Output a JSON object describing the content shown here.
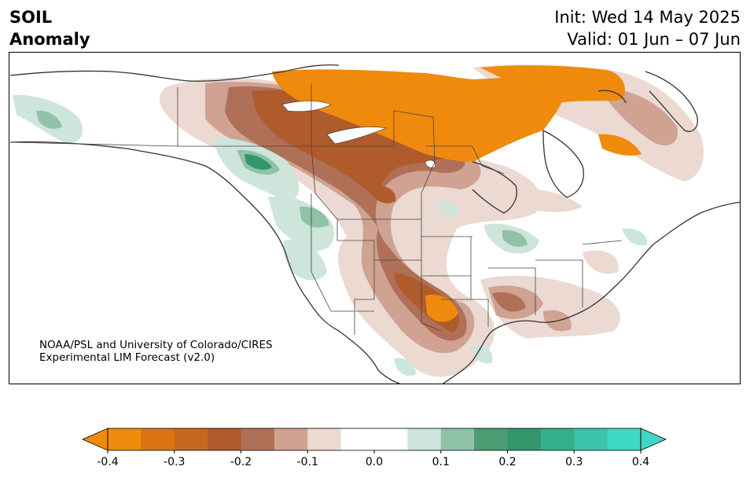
{
  "title": {
    "line1": "SOIL",
    "line2": "Anomaly"
  },
  "dates": {
    "init": "Init: Wed 14 May 2025",
    "valid": "Valid: 01 Jun – 07 Jun"
  },
  "credit": {
    "line1": "NOAA/PSL and University of Colorado/CIRES",
    "line2": "Experimental LIM Forecast (v2.0)"
  },
  "colorbar": {
    "min": -0.4,
    "max": 0.4,
    "extend": "both",
    "colors": [
      "#f08a0c",
      "#db7313",
      "#c66920",
      "#b05b2c",
      "#b07058",
      "#cfa291",
      "#ebd9d2",
      "#ffffff",
      "#ffffff",
      "#cde5db",
      "#8fc2a6",
      "#4e9c73",
      "#33966a",
      "#31b08b",
      "#3cc3a9",
      "#3ed8c5"
    ],
    "tick_labels": [
      "-0.4",
      "-0.3",
      "-0.2",
      "-0.1",
      "0.0",
      "0.1",
      "0.2",
      "0.3",
      "0.4"
    ]
  }
}
